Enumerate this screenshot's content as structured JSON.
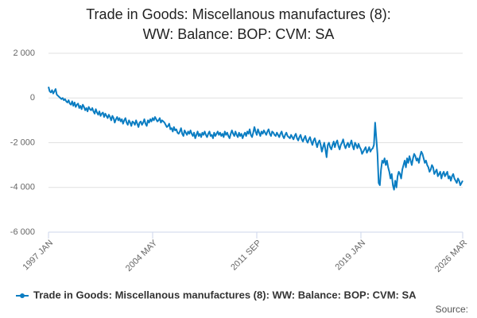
{
  "chart_data": {
    "type": "line",
    "title": "Trade in Goods: Miscellanous manufactures (8): WW: Balance: BOP: CVM: SA",
    "source_label": "Source:",
    "categories": [
      "1997 JAN",
      null,
      null,
      null,
      null,
      null,
      null,
      null,
      null,
      null,
      null,
      null,
      null,
      null,
      null,
      null,
      null,
      null,
      null,
      null,
      null,
      null,
      null,
      null,
      null,
      null,
      null,
      null,
      null,
      null,
      null,
      null,
      null,
      null,
      null,
      null,
      null,
      null,
      null,
      null,
      null,
      null,
      null,
      null,
      null,
      null,
      null,
      null,
      null,
      null,
      null,
      null,
      null,
      null,
      null,
      null,
      null,
      null,
      null,
      null,
      null,
      null,
      null,
      null,
      null,
      null,
      null,
      null,
      null,
      null,
      null,
      null,
      null,
      null,
      null,
      null,
      null,
      null,
      null,
      null,
      null,
      null,
      null,
      null,
      null,
      null,
      null,
      null,
      "2004 MAY",
      null,
      null,
      null,
      null,
      null,
      null,
      null,
      null,
      null,
      null,
      null,
      null,
      null,
      null,
      null,
      null,
      null,
      null,
      null,
      null,
      null,
      null,
      null,
      null,
      null,
      null,
      null,
      null,
      null,
      null,
      null,
      null,
      null,
      null,
      null,
      null,
      null,
      null,
      null,
      null,
      null,
      null,
      null,
      null,
      null,
      null,
      null,
      null,
      null,
      null,
      null,
      null,
      null,
      null,
      null,
      null,
      null,
      null,
      null,
      null,
      null,
      null,
      null,
      null,
      null,
      null,
      null,
      null,
      null,
      null,
      null,
      null,
      null,
      null,
      null,
      null,
      null,
      null,
      null,
      null,
      null,
      null,
      null,
      null,
      null,
      null,
      null,
      "2011 SEP",
      null,
      null,
      null,
      null,
      null,
      null,
      null,
      null,
      null,
      null,
      null,
      null,
      null,
      null,
      null,
      null,
      null,
      null,
      null,
      null,
      null,
      null,
      null,
      null,
      null,
      null,
      null,
      null,
      null,
      null,
      null,
      null,
      null,
      null,
      null,
      null,
      null,
      null,
      null,
      null,
      null,
      null,
      null,
      null,
      null,
      null,
      null,
      null,
      null,
      null,
      null,
      null,
      null,
      null,
      null,
      null,
      null,
      null,
      null,
      null,
      null,
      null,
      null,
      null,
      null,
      null,
      null,
      null,
      null,
      null,
      null,
      null,
      null,
      null,
      null,
      null,
      null,
      null,
      null,
      null,
      null,
      null,
      null,
      null,
      null,
      null,
      null,
      "2019 JAN",
      null,
      null,
      null,
      null,
      null,
      null,
      null,
      null,
      null,
      null,
      null,
      null,
      null,
      null,
      null,
      null,
      null,
      null,
      null,
      null,
      null,
      null,
      null,
      null,
      null,
      null,
      null,
      null,
      null,
      null,
      null,
      null,
      null,
      null,
      null,
      null,
      null,
      null,
      null,
      null,
      null,
      null,
      null,
      null,
      null,
      null,
      null,
      null,
      null,
      null,
      null,
      null,
      null,
      null,
      null,
      null,
      null,
      null,
      null,
      null,
      null,
      null,
      null,
      null,
      null,
      null,
      null,
      null,
      null,
      null,
      null,
      null,
      null,
      null,
      null,
      null,
      null,
      null,
      null,
      null,
      null,
      null,
      null,
      null,
      null,
      "2026 MAR"
    ],
    "series": [
      {
        "name": "Trade in Goods: Miscellanous manufactures (8): WW: Balance: BOP: CVM: SA",
        "color": "#0b7dc2",
        "values": [
          500,
          300,
          250,
          350,
          200,
          300,
          400,
          150,
          100,
          50,
          0,
          -50,
          0,
          -100,
          -50,
          -150,
          -200,
          -100,
          -250,
          -300,
          -150,
          -350,
          -200,
          -400,
          -300,
          -250,
          -450,
          -350,
          -500,
          -300,
          -400,
          -550,
          -450,
          -600,
          -400,
          -500,
          -550,
          -450,
          -600,
          -700,
          -500,
          -650,
          -750,
          -600,
          -800,
          -700,
          -650,
          -850,
          -700,
          -800,
          -900,
          -750,
          -850,
          -1000,
          -800,
          -900,
          -1100,
          -950,
          -850,
          -1000,
          -900,
          -1050,
          -950,
          -1150,
          -1000,
          -900,
          -1100,
          -1200,
          -1000,
          -1100,
          -1250,
          -1050,
          -1100,
          -1200,
          -1000,
          -1150,
          -1300,
          -1100,
          -1050,
          -1200,
          -1100,
          -950,
          -1150,
          -1250,
          -1000,
          -1100,
          -950,
          -1050,
          -900,
          -1000,
          -850,
          -950,
          -1050,
          -1000,
          -900,
          -1100,
          -1000,
          -1050,
          -1100,
          -1200,
          -1300,
          -1250,
          -1150,
          -1400,
          -1350,
          -1500,
          -1300,
          -1450,
          -1400,
          -1550,
          -1600,
          -1500,
          -1350,
          -1600,
          -1700,
          -1450,
          -1550,
          -1650,
          -1500,
          -1600,
          -1450,
          -1600,
          -1700,
          -1550,
          -1800,
          -1650,
          -1500,
          -1700,
          -1600,
          -1750,
          -1550,
          -1650,
          -1500,
          -1650,
          -1750,
          -1600,
          -1500,
          -1700,
          -1650,
          -1800,
          -1550,
          -1700,
          -1600,
          -1500,
          -1650,
          -1550,
          -1700,
          -1600,
          -1750,
          -1500,
          -1650,
          -1550,
          -1700,
          -1800,
          -1600,
          -1450,
          -1600,
          -1700,
          -1500,
          -1650,
          -1750,
          -1550,
          -1700,
          -1600,
          -1800,
          -1650,
          -1550,
          -1700,
          -1500,
          -1600,
          -1400,
          -1650,
          -1750,
          -1550,
          -1300,
          -1500,
          -1650,
          -1400,
          -1550,
          -1700,
          -1500,
          -1600,
          -1450,
          -1550,
          -1650,
          -1500,
          -1400,
          -1600,
          -1700,
          -1500,
          -1550,
          -1650,
          -1700,
          -1550,
          -1650,
          -1750,
          -1600,
          -1500,
          -1700,
          -1800,
          -1650,
          -1550,
          -1700,
          -1750,
          -1800,
          -1650,
          -1750,
          -1850,
          -1700,
          -1600,
          -1800,
          -1900,
          -1750,
          -1650,
          -1850,
          -1950,
          -1800,
          -1700,
          -1900,
          -2000,
          -1850,
          -1750,
          -1950,
          -2100,
          -1900,
          -1800,
          -2000,
          -2200,
          -2000,
          -1900,
          -2100,
          -2400,
          -2200,
          -2000,
          -2300,
          -2650,
          -2100,
          -2000,
          -2200,
          -2300,
          -2100,
          -1950,
          -2200,
          -2000,
          -1900,
          -2150,
          -2300,
          -2100,
          -2000,
          -1850,
          -2100,
          -2250,
          -2100,
          -2000,
          -2200,
          -2050,
          -1900,
          -2150,
          -2300,
          -2000,
          -2100,
          -2250,
          -2050,
          -2200,
          -2300,
          -2500,
          -2400,
          -2300,
          -2200,
          -2450,
          -2350,
          -2200,
          -2400,
          -2300,
          -2250,
          -2100,
          -1100,
          -1800,
          -2500,
          -3800,
          -3900,
          -3200,
          -2800,
          -2900,
          -2700,
          -3000,
          -2800,
          -3100,
          -3300,
          -3600,
          -3400,
          -3900,
          -4100,
          -3700,
          -4000,
          -3500,
          -3300,
          -3400,
          -3600,
          -3200,
          -3000,
          -2800,
          -3100,
          -2700,
          -2900,
          -2600,
          -2800,
          -3000,
          -2700,
          -2500,
          -2600,
          -2800,
          -2700,
          -2900,
          -2600,
          -2400,
          -2500,
          -2700,
          -2900,
          -2800,
          -3000,
          -3100,
          -3300,
          -3200,
          -3000,
          -3100,
          -3400,
          -3300,
          -3200,
          -3500,
          -3400,
          -3300,
          -3600,
          -3400,
          -3300,
          -3500,
          -3400,
          -3300,
          -3600,
          -3500,
          -3700,
          -3500,
          -3400,
          -3600,
          -3700,
          -3800,
          -3600,
          -3700,
          -3900,
          -3800,
          -3700
        ]
      }
    ],
    "ylim": [
      -6000,
      2000
    ],
    "yticks": [
      {
        "value": -6000,
        "label": "-6 000"
      },
      {
        "value": -4000,
        "label": "-4 000"
      },
      {
        "value": -2000,
        "label": "-2 000"
      },
      0,
      {
        "value": 2000,
        "label": "2 000"
      }
    ],
    "grid": true
  }
}
